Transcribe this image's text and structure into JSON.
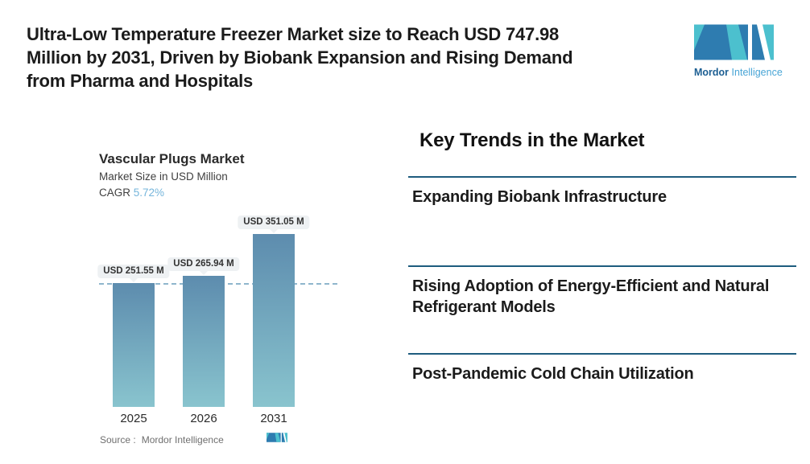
{
  "header": {
    "title_lines": [
      "Ultra-Low Temperature Freezer Market size to Reach USD 747.98",
      "Million by 2031, Driven by Biobank Expansion and Rising Demand",
      "from Pharma and Hospitals"
    ],
    "logo": {
      "brand_bold": "Mordor",
      "brand_light": "Intelligence"
    }
  },
  "chart": {
    "title": "Vascular Plugs Market",
    "subtitle": "Market Size in USD Million",
    "cagr_label": "CAGR",
    "cagr_value": "5.72%",
    "source_label": "Source :",
    "source_value": "Mordor Intelligence"
  },
  "chart_data": {
    "type": "bar",
    "title": "Vascular Plugs Market",
    "subtitle": "Market Size in USD Million",
    "cagr": "5.72%",
    "categories": [
      "2025",
      "2026",
      "2031"
    ],
    "values": [
      251.55,
      265.94,
      351.05
    ],
    "value_labels": [
      "USD 251.55 M",
      "USD 265.94 M",
      "USD 351.05 M"
    ],
    "ylabel": "Market Size in USD Million",
    "reference_line_value": 251.55,
    "grid": false,
    "legend": false
  },
  "trends": {
    "heading": "Key Trends in the Market",
    "items": [
      "Expanding Biobank Infrastructure",
      "Rising Adoption of Energy-Efficient and Natural Refrigerant Models",
      "Post-Pandemic Cold Chain Utilization"
    ]
  },
  "colors": {
    "bar_top": "#5d8cae",
    "bar_bottom": "#89c4ce",
    "dashed_line": "#8fb6cd",
    "divider": "#1e5c7e",
    "cagr_value": "#75b5db",
    "logo_blue": "#2e7cb0",
    "logo_teal": "#4cc0ce",
    "bubble_bg": "#eef1f3"
  }
}
